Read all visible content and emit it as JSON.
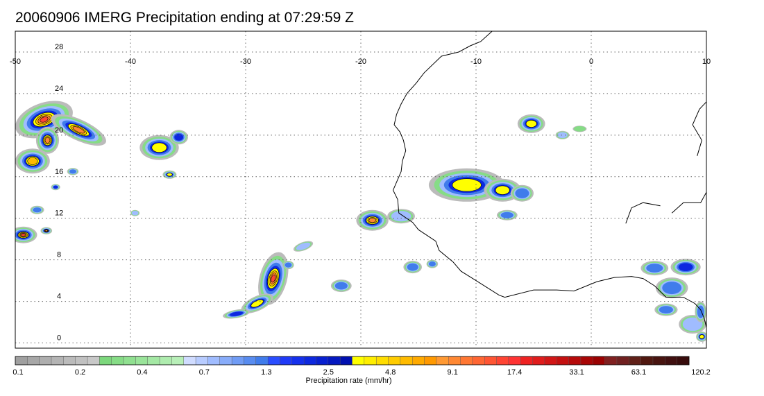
{
  "title": "20060906 IMERG Precipitation ending at 07:29:59 Z",
  "map": {
    "lon_range": [
      -50,
      10
    ],
    "lat_range": [
      -0.5,
      30
    ],
    "lon_ticks": [
      {
        "value": -50,
        "label": "-50"
      },
      {
        "value": -40,
        "label": "-40"
      },
      {
        "value": -30,
        "label": "-30"
      },
      {
        "value": -20,
        "label": "-20"
      },
      {
        "value": -10,
        "label": "-10"
      },
      {
        "value": 0,
        "label": "0"
      },
      {
        "value": 10,
        "label": "10"
      }
    ],
    "lat_ticks": [
      {
        "value": 0,
        "label": "0"
      },
      {
        "value": 4,
        "label": "4"
      },
      {
        "value": 8,
        "label": "8"
      },
      {
        "value": 12,
        "label": "12"
      },
      {
        "value": 16,
        "label": "16"
      },
      {
        "value": 20,
        "label": "20"
      },
      {
        "value": 24,
        "label": "24"
      },
      {
        "value": 28,
        "label": "28"
      }
    ],
    "grid": "dotted",
    "coastline_africa": [
      [
        -8.6,
        30
      ],
      [
        -9.6,
        29
      ],
      [
        -10.5,
        28.6
      ],
      [
        -11.5,
        28
      ],
      [
        -13,
        27.6
      ],
      [
        -14.5,
        26
      ],
      [
        -15.2,
        25
      ],
      [
        -16,
        24
      ],
      [
        -16.5,
        23
      ],
      [
        -16.9,
        22
      ],
      [
        -17.1,
        21
      ],
      [
        -16.6,
        20.3
      ],
      [
        -16.3,
        19.5
      ],
      [
        -16.1,
        18.5
      ],
      [
        -16.4,
        17.5
      ],
      [
        -16.5,
        16.5
      ],
      [
        -17.2,
        14.7
      ],
      [
        -16.8,
        13.8
      ],
      [
        -16.7,
        12.5
      ],
      [
        -15.5,
        11.6
      ],
      [
        -15,
        10.9
      ],
      [
        -13.5,
        9.8
      ],
      [
        -13.2,
        8.9
      ],
      [
        -12,
        7.8
      ],
      [
        -11.3,
        6.9
      ],
      [
        -10,
        6
      ],
      [
        -8,
        4.6
      ],
      [
        -7.5,
        4.4
      ],
      [
        -5,
        5.1
      ],
      [
        -3,
        5.1
      ],
      [
        -1.5,
        5
      ],
      [
        0.5,
        5.9
      ],
      [
        2,
        6.3
      ],
      [
        3.5,
        6.4
      ],
      [
        4.5,
        6.2
      ],
      [
        5.5,
        5.5
      ],
      [
        6.5,
        4.4
      ],
      [
        8,
        4.4
      ],
      [
        9,
        3.8
      ],
      [
        9.5,
        3.2
      ],
      [
        9.8,
        2.4
      ],
      [
        10,
        1.5
      ]
    ],
    "border_lines": [
      [
        [
          7,
          12.5
        ],
        [
          8,
          13.5
        ],
        [
          9.5,
          13.5
        ],
        [
          10,
          14.5
        ]
      ],
      [
        [
          3,
          11.5
        ],
        [
          3.5,
          13
        ],
        [
          4.5,
          13.5
        ],
        [
          6,
          13.2
        ]
      ],
      [
        [
          9.2,
          18
        ],
        [
          9.6,
          19.5
        ],
        [
          8.8,
          21
        ],
        [
          9.4,
          22.5
        ],
        [
          10,
          23.2
        ]
      ]
    ],
    "precip_cells": [
      {
        "lon": -47.5,
        "lat": 21.5,
        "rx": 2.6,
        "ry": 1.6,
        "rot": -20,
        "peak": 63.1
      },
      {
        "lon": -44.5,
        "lat": 20.5,
        "rx": 2.6,
        "ry": 1.0,
        "rot": 25,
        "peak": 33.1
      },
      {
        "lon": -48.5,
        "lat": 17.5,
        "rx": 1.5,
        "ry": 1.2,
        "rot": 0,
        "peak": 17.4
      },
      {
        "lon": -47.2,
        "lat": 19.5,
        "rx": 1.0,
        "ry": 1.3,
        "rot": 0,
        "peak": 33.1
      },
      {
        "lon": -49.3,
        "lat": 10.4,
        "rx": 1.2,
        "ry": 0.8,
        "rot": 0,
        "peak": 63.1
      },
      {
        "lon": -47.3,
        "lat": 10.8,
        "rx": 0.5,
        "ry": 0.35,
        "rot": 0,
        "peak": 33.1
      },
      {
        "lon": -48.1,
        "lat": 12.8,
        "rx": 0.6,
        "ry": 0.4,
        "rot": 0,
        "peak": 2.5
      },
      {
        "lon": -46.5,
        "lat": 15.0,
        "rx": 0.4,
        "ry": 0.3,
        "rot": 0,
        "peak": 4.8
      },
      {
        "lon": -45.0,
        "lat": 16.5,
        "rx": 0.5,
        "ry": 0.35,
        "rot": 0,
        "peak": 2.5
      },
      {
        "lon": -37.5,
        "lat": 18.8,
        "rx": 1.7,
        "ry": 1.2,
        "rot": 0,
        "peak": 9.1
      },
      {
        "lon": -35.8,
        "lat": 19.8,
        "rx": 0.8,
        "ry": 0.7,
        "rot": 0,
        "peak": 4.8
      },
      {
        "lon": -36.6,
        "lat": 16.2,
        "rx": 0.6,
        "ry": 0.4,
        "rot": 0,
        "peak": 9.1
      },
      {
        "lon": -39.6,
        "lat": 12.5,
        "rx": 0.4,
        "ry": 0.3,
        "rot": 0,
        "peak": 1.3
      },
      {
        "lon": -27.6,
        "lat": 6.2,
        "rx": 1.2,
        "ry": 2.6,
        "rot": 15,
        "peak": 63.1
      },
      {
        "lon": -29.0,
        "lat": 3.8,
        "rx": 1.5,
        "ry": 0.7,
        "rot": -25,
        "peak": 9.1
      },
      {
        "lon": -30.8,
        "lat": 2.8,
        "rx": 1.2,
        "ry": 0.4,
        "rot": -10,
        "peak": 4.8
      },
      {
        "lon": -26.3,
        "lat": 7.5,
        "rx": 0.5,
        "ry": 0.4,
        "rot": 0,
        "peak": 2.5
      },
      {
        "lon": -25.0,
        "lat": 9.3,
        "rx": 0.9,
        "ry": 0.4,
        "rot": -20,
        "peak": 1.3
      },
      {
        "lon": -21.7,
        "lat": 5.5,
        "rx": 0.9,
        "ry": 0.6,
        "rot": 0,
        "peak": 2.5
      },
      {
        "lon": -19.0,
        "lat": 11.8,
        "rx": 1.4,
        "ry": 1.0,
        "rot": 0,
        "peak": 33.1
      },
      {
        "lon": -16.5,
        "lat": 12.2,
        "rx": 1.2,
        "ry": 0.7,
        "rot": 0,
        "peak": 1.3
      },
      {
        "lon": -15.5,
        "lat": 7.3,
        "rx": 0.8,
        "ry": 0.6,
        "rot": 0,
        "peak": 2.5
      },
      {
        "lon": -13.8,
        "lat": 7.6,
        "rx": 0.5,
        "ry": 0.4,
        "rot": 0,
        "peak": 2.5
      },
      {
        "lon": -10.8,
        "lat": 15.2,
        "rx": 3.3,
        "ry": 1.6,
        "rot": 0,
        "peak": 9.1
      },
      {
        "lon": -7.7,
        "lat": 14.7,
        "rx": 1.6,
        "ry": 1.1,
        "rot": 0,
        "peak": 9.1
      },
      {
        "lon": -6.0,
        "lat": 14.4,
        "rx": 1.0,
        "ry": 0.8,
        "rot": 0,
        "peak": 2.5
      },
      {
        "lon": -7.3,
        "lat": 12.3,
        "rx": 0.9,
        "ry": 0.5,
        "rot": 0,
        "peak": 2.5
      },
      {
        "lon": -5.2,
        "lat": 21.1,
        "rx": 1.2,
        "ry": 0.9,
        "rot": 0,
        "peak": 9.1
      },
      {
        "lon": -2.5,
        "lat": 20.0,
        "rx": 0.6,
        "ry": 0.4,
        "rot": 0,
        "peak": 1.3
      },
      {
        "lon": -1.0,
        "lat": 20.6,
        "rx": 0.6,
        "ry": 0.3,
        "rot": 0,
        "peak": 0.7
      },
      {
        "lon": 5.5,
        "lat": 7.2,
        "rx": 1.2,
        "ry": 0.7,
        "rot": 0,
        "peak": 2.5
      },
      {
        "lon": 8.2,
        "lat": 7.3,
        "rx": 1.3,
        "ry": 0.8,
        "rot": 0,
        "peak": 4.8
      },
      {
        "lon": 7.0,
        "lat": 5.3,
        "rx": 1.4,
        "ry": 1.0,
        "rot": 0,
        "peak": 2.5
      },
      {
        "lon": 6.5,
        "lat": 3.2,
        "rx": 1.0,
        "ry": 0.6,
        "rot": 0,
        "peak": 2.5
      },
      {
        "lon": 8.8,
        "lat": 1.8,
        "rx": 1.2,
        "ry": 0.9,
        "rot": 0,
        "peak": 1.3
      },
      {
        "lon": 9.6,
        "lat": 0.6,
        "rx": 0.5,
        "ry": 0.5,
        "rot": 0,
        "peak": 9.1
      },
      {
        "lon": 9.5,
        "lat": 3.0,
        "rx": 0.5,
        "ry": 1.0,
        "rot": 0,
        "peak": 2.5
      }
    ]
  },
  "colorbar": {
    "title": "Precipitation rate (mm/hr)",
    "colors": [
      "#a0a0a0",
      "#a7a7a7",
      "#aeaeae",
      "#b4b4b4",
      "#bbbbbb",
      "#c1c1c1",
      "#c8c8c8",
      "#7cd77c",
      "#86dc86",
      "#90e090",
      "#9ae49a",
      "#a4e8a4",
      "#aeecae",
      "#b8efb8",
      "#d0dcff",
      "#b8ccff",
      "#a0bcff",
      "#88acfa",
      "#709cf5",
      "#588cf0",
      "#407ceb",
      "#2a4dff",
      "#1f3af7",
      "#1530ec",
      "#0d28df",
      "#0820d0",
      "#0418c0",
      "#0010b0",
      "#ffff00",
      "#ffee00",
      "#ffdd00",
      "#ffcc00",
      "#ffbb00",
      "#ffaa00",
      "#ff9900",
      "#ff9933",
      "#ff8833",
      "#ff7733",
      "#ff6633",
      "#ff5533",
      "#ff4433",
      "#ff3333",
      "#ee2222",
      "#e01c1c",
      "#d21616",
      "#c41010",
      "#b60a0a",
      "#a80606",
      "#9a0202",
      "#802020",
      "#702020",
      "#602018",
      "#501810",
      "#481410",
      "#401010",
      "#380c0c"
    ],
    "tick_labels": [
      {
        "index": 0,
        "label": "0.1"
      },
      {
        "index": 4,
        "label": "0.2"
      },
      {
        "index": 8,
        "label": "0.4"
      },
      {
        "index": 12,
        "label": "0.7"
      },
      {
        "index": 16,
        "label": "1.3"
      },
      {
        "index": 20,
        "label": "2.5"
      },
      {
        "index": 24,
        "label": "4.8"
      },
      {
        "index": 28,
        "label": "9.1"
      },
      {
        "index": 32,
        "label": "17.4"
      },
      {
        "index": 36,
        "label": "33.1"
      },
      {
        "index": 40,
        "label": "63.1"
      },
      {
        "index": 44,
        "label": "120.2"
      }
    ]
  }
}
